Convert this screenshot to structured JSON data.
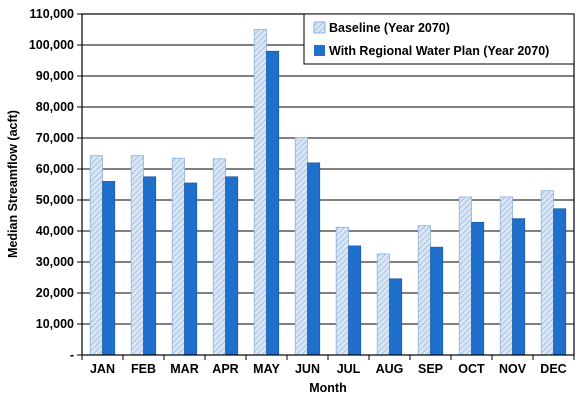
{
  "chart_data": {
    "type": "bar",
    "categories": [
      "JAN",
      "FEB",
      "MAR",
      "APR",
      "MAY",
      "JUN",
      "JUL",
      "AUG",
      "SEP",
      "OCT",
      "NOV",
      "DEC"
    ],
    "series": [
      {
        "name": "Baseline (Year 2070)",
        "values": [
          64300,
          64300,
          63500,
          63300,
          105000,
          70200,
          41200,
          32600,
          41700,
          51000,
          51000,
          53000
        ],
        "color": "#d9e6f5",
        "hatch_color": "#8fb0d8",
        "pattern": "diagonal-hatch"
      },
      {
        "name": "With Regional Water Plan (Year 2070)",
        "values": [
          56000,
          57500,
          55500,
          57500,
          98000,
          62000,
          35200,
          24600,
          34800,
          42800,
          44000,
          47200
        ],
        "color": "#1f6fcc",
        "pattern": "solid"
      }
    ],
    "xlabel": "Month",
    "ylabel": "Median Streamflow (acft)",
    "ylim": [
      0,
      110000
    ],
    "ytick_step": 10000,
    "ytick_labels": [
      "-",
      "10,000",
      "20,000",
      "30,000",
      "40,000",
      "50,000",
      "60,000",
      "70,000",
      "80,000",
      "90,000",
      "100,000",
      "110,000"
    ],
    "grid": true,
    "legend_position": "top-right"
  }
}
